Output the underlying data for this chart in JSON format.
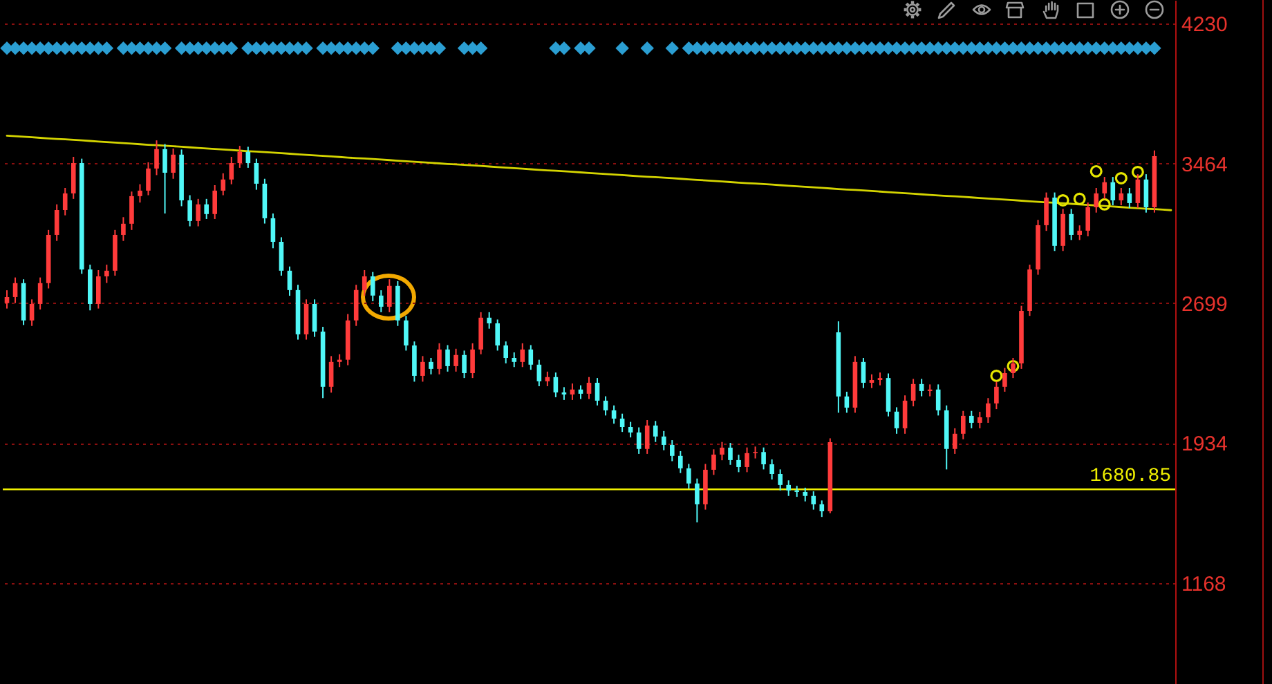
{
  "chart_data": {
    "type": "candlestick",
    "categories": [
      null,
      null,
      null,
      null,
      null,
      null,
      null,
      null,
      null,
      null,
      null,
      null,
      null,
      null,
      null,
      null,
      null,
      null,
      null,
      null,
      null,
      null,
      null,
      null,
      null,
      null,
      null,
      null,
      null,
      null,
      null,
      null,
      null,
      null,
      null,
      null,
      null,
      null,
      null,
      null,
      null,
      null,
      null,
      null,
      null,
      null,
      null,
      null,
      null,
      null,
      null,
      null,
      null,
      null,
      null,
      null,
      null,
      null,
      null,
      null,
      null,
      null,
      null,
      null,
      null,
      null,
      null,
      null,
      null,
      null,
      null,
      null,
      null,
      null,
      null,
      null,
      null,
      null,
      null,
      null,
      null,
      null,
      null,
      null,
      null,
      null,
      null,
      null,
      null,
      null,
      null,
      null,
      null,
      null,
      null,
      null,
      null,
      null,
      null,
      null,
      null,
      null,
      null,
      null,
      null,
      null,
      null,
      null,
      null,
      null,
      null,
      null,
      null,
      null,
      null,
      null,
      null,
      null,
      null,
      null,
      null,
      null,
      null,
      null,
      null,
      null,
      null,
      null,
      null,
      null,
      null,
      null,
      null,
      null,
      null,
      null,
      null,
      null,
      null,
      null,
      null
    ],
    "ohlc": [
      [
        2700,
        2770,
        2670,
        2733
      ],
      [
        2733,
        2840,
        2700,
        2809
      ],
      [
        2809,
        2830,
        2580,
        2605
      ],
      [
        2605,
        2720,
        2575,
        2695
      ],
      [
        2695,
        2840,
        2665,
        2809
      ],
      [
        2809,
        3100,
        2780,
        3073
      ],
      [
        3073,
        3240,
        3040,
        3209
      ],
      [
        3209,
        3330,
        3180,
        3300
      ],
      [
        3300,
        3500,
        3270,
        3466
      ],
      [
        3466,
        3490,
        2860,
        2884
      ],
      [
        2884,
        2910,
        2660,
        2695
      ],
      [
        2695,
        2880,
        2670,
        2846
      ],
      [
        2846,
        2910,
        2810,
        2877
      ],
      [
        2877,
        3100,
        2850,
        3073
      ],
      [
        3073,
        3170,
        3040,
        3134
      ],
      [
        3134,
        3310,
        3100,
        3285
      ],
      [
        3285,
        3350,
        3250,
        3315
      ],
      [
        3315,
        3470,
        3290,
        3436
      ],
      [
        3436,
        3590,
        3400,
        3542
      ],
      [
        3542,
        3570,
        3190,
        3413
      ],
      [
        3413,
        3545,
        3380,
        3512
      ],
      [
        3512,
        3540,
        3230,
        3262
      ],
      [
        3262,
        3290,
        3120,
        3149
      ],
      [
        3149,
        3270,
        3120,
        3240
      ],
      [
        3240,
        3270,
        3160,
        3187
      ],
      [
        3187,
        3345,
        3160,
        3315
      ],
      [
        3315,
        3410,
        3290,
        3376
      ],
      [
        3376,
        3500,
        3350,
        3466
      ],
      [
        3466,
        3560,
        3440,
        3527
      ],
      [
        3527,
        3555,
        3440,
        3466
      ],
      [
        3466,
        3490,
        3320,
        3353
      ],
      [
        3353,
        3380,
        3135,
        3164
      ],
      [
        3164,
        3190,
        3000,
        3035
      ],
      [
        3035,
        3060,
        2850,
        2877
      ],
      [
        2877,
        2900,
        2740,
        2771
      ],
      [
        2771,
        2800,
        2500,
        2529
      ],
      [
        2529,
        2720,
        2500,
        2695
      ],
      [
        2695,
        2720,
        2515,
        2544
      ],
      [
        2544,
        2570,
        2180,
        2242
      ],
      [
        2242,
        2410,
        2210,
        2378
      ],
      [
        2378,
        2420,
        2350,
        2390
      ],
      [
        2390,
        2640,
        2360,
        2605
      ],
      [
        2605,
        2800,
        2575,
        2771
      ],
      [
        2771,
        2880,
        2740,
        2846
      ],
      [
        2846,
        2870,
        2710,
        2741
      ],
      [
        2741,
        2770,
        2650,
        2680
      ],
      [
        2680,
        2830,
        2650,
        2794
      ],
      [
        2794,
        2820,
        2575,
        2605
      ],
      [
        2605,
        2630,
        2440,
        2468
      ],
      [
        2468,
        2490,
        2270,
        2302
      ],
      [
        2302,
        2410,
        2270,
        2378
      ],
      [
        2378,
        2400,
        2310,
        2340
      ],
      [
        2340,
        2480,
        2310,
        2446
      ],
      [
        2446,
        2470,
        2325,
        2355
      ],
      [
        2355,
        2450,
        2325,
        2416
      ],
      [
        2416,
        2440,
        2290,
        2317
      ],
      [
        2317,
        2480,
        2290,
        2446
      ],
      [
        2446,
        2650,
        2420,
        2620
      ],
      [
        2620,
        2650,
        2560,
        2589
      ],
      [
        2589,
        2610,
        2440,
        2468
      ],
      [
        2468,
        2490,
        2370,
        2400
      ],
      [
        2400,
        2430,
        2350,
        2378
      ],
      [
        2378,
        2480,
        2350,
        2446
      ],
      [
        2446,
        2470,
        2335,
        2363
      ],
      [
        2363,
        2390,
        2245,
        2272
      ],
      [
        2272,
        2325,
        2245,
        2295
      ],
      [
        2295,
        2320,
        2185,
        2211
      ],
      [
        2211,
        2240,
        2170,
        2200
      ],
      [
        2200,
        2260,
        2170,
        2227
      ],
      [
        2227,
        2250,
        2175,
        2204
      ],
      [
        2204,
        2295,
        2175,
        2264
      ],
      [
        2264,
        2290,
        2140,
        2166
      ],
      [
        2166,
        2190,
        2085,
        2113
      ],
      [
        2113,
        2140,
        2040,
        2068
      ],
      [
        2068,
        2095,
        1995,
        2022
      ],
      [
        2022,
        2050,
        1965,
        1992
      ],
      [
        1992,
        2020,
        1875,
        1902
      ],
      [
        1902,
        2060,
        1875,
        2030
      ],
      [
        2030,
        2055,
        1940,
        1970
      ],
      [
        1970,
        2000,
        1895,
        1924
      ],
      [
        1924,
        1950,
        1835,
        1864
      ],
      [
        1864,
        1890,
        1770,
        1796
      ],
      [
        1796,
        1820,
        1685,
        1713
      ],
      [
        1713,
        1740,
        1500,
        1599
      ],
      [
        1599,
        1820,
        1570,
        1788
      ],
      [
        1788,
        1900,
        1760,
        1871
      ],
      [
        1871,
        1940,
        1840,
        1909
      ],
      [
        1909,
        1935,
        1815,
        1841
      ],
      [
        1841,
        1870,
        1775,
        1803
      ],
      [
        1803,
        1910,
        1775,
        1879
      ],
      [
        1879,
        1915,
        1850,
        1885
      ],
      [
        1885,
        1910,
        1790,
        1818
      ],
      [
        1818,
        1845,
        1735,
        1765
      ],
      [
        1765,
        1790,
        1675,
        1705
      ],
      [
        1705,
        1730,
        1645,
        1675
      ],
      [
        1675,
        1700,
        1640,
        1667
      ],
      [
        1667,
        1690,
        1615,
        1645
      ],
      [
        1645,
        1670,
        1570,
        1599
      ],
      [
        1599,
        1620,
        1530,
        1561
      ],
      [
        1561,
        1960,
        1550,
        1939
      ],
      [
        2540,
        2600,
        2100,
        2189
      ],
      [
        2189,
        2215,
        2100,
        2128
      ],
      [
        2128,
        2410,
        2100,
        2378
      ],
      [
        2378,
        2400,
        2235,
        2264
      ],
      [
        2264,
        2310,
        2235,
        2279
      ],
      [
        2279,
        2320,
        2250,
        2290
      ],
      [
        2290,
        2315,
        2080,
        2106
      ],
      [
        2106,
        2130,
        1985,
        2015
      ],
      [
        2015,
        2195,
        1985,
        2166
      ],
      [
        2166,
        2285,
        2135,
        2257
      ],
      [
        2257,
        2285,
        2190,
        2219
      ],
      [
        2219,
        2255,
        2190,
        2227
      ],
      [
        2227,
        2255,
        2085,
        2113
      ],
      [
        2113,
        2140,
        1790,
        1902
      ],
      [
        1902,
        2015,
        1875,
        1985
      ],
      [
        1985,
        2110,
        1955,
        2083
      ],
      [
        2083,
        2110,
        2015,
        2045
      ],
      [
        2045,
        2105,
        2015,
        2075
      ],
      [
        2075,
        2180,
        2045,
        2151
      ],
      [
        2151,
        2270,
        2120,
        2242
      ],
      [
        2242,
        2345,
        2215,
        2317
      ],
      [
        2317,
        2400,
        2290,
        2370
      ],
      [
        2370,
        2685,
        2340,
        2657
      ],
      [
        2657,
        2910,
        2630,
        2884
      ],
      [
        2884,
        3155,
        2855,
        3126
      ],
      [
        3126,
        3305,
        3095,
        3277
      ],
      [
        3277,
        3305,
        2985,
        3013
      ],
      [
        3013,
        3215,
        2985,
        3187
      ],
      [
        3187,
        3215,
        3045,
        3073
      ],
      [
        3073,
        3125,
        3045,
        3096
      ],
      [
        3096,
        3250,
        3065,
        3224
      ],
      [
        3224,
        3330,
        3195,
        3300
      ],
      [
        3300,
        3390,
        3270,
        3361
      ],
      [
        3361,
        3390,
        3235,
        3262
      ],
      [
        3262,
        3330,
        3235,
        3300
      ],
      [
        3300,
        3330,
        3220,
        3247
      ],
      [
        3247,
        3405,
        3220,
        3376
      ],
      [
        3376,
        3405,
        3195,
        3224
      ],
      [
        3224,
        3535,
        3195,
        3504
      ],
      null,
      null
    ],
    "colors": [
      "#ff3b3b",
      "#ff3b3b",
      "#50f7f7",
      "#ff3b3b",
      "#ff3b3b",
      "#ff3b3b",
      "#ff3b3b",
      "#ff3b3b",
      "#ff3b3b",
      "#50f7f7",
      "#50f7f7",
      "#ff3b3b",
      "#ff3b3b",
      "#ff3b3b",
      "#ff3b3b",
      "#ff3b3b",
      "#ff3b3b",
      "#ff3b3b",
      "#ff3b3b",
      "#50f7f7",
      "#ff3b3b",
      "#50f7f7",
      "#50f7f7",
      "#ff3b3b",
      "#50f7f7",
      "#ff3b3b",
      "#ff3b3b",
      "#ff3b3b",
      "#ff3b3b",
      "#50f7f7",
      "#50f7f7",
      "#50f7f7",
      "#50f7f7",
      "#50f7f7",
      "#50f7f7",
      "#50f7f7",
      "#ff3b3b",
      "#50f7f7",
      "#50f7f7",
      "#ff3b3b",
      "#ff3b3b",
      "#ff3b3b",
      "#ff3b3b",
      "#ff3b3b",
      "#50f7f7",
      "#50f7f7",
      "#ff3b3b",
      "#50f7f7",
      "#50f7f7",
      "#50f7f7",
      "#ff3b3b",
      "#50f7f7",
      "#ff3b3b",
      "#50f7f7",
      "#ff3b3b",
      "#50f7f7",
      "#ff3b3b",
      "#ff3b3b",
      "#50f7f7",
      "#50f7f7",
      "#50f7f7",
      "#50f7f7",
      "#ff3b3b",
      "#50f7f7",
      "#50f7f7",
      "#ff3b3b",
      "#50f7f7",
      "#50f7f7",
      "#ff3b3b",
      "#50f7f7",
      "#ff3b3b",
      "#50f7f7",
      "#50f7f7",
      "#50f7f7",
      "#50f7f7",
      "#50f7f7",
      "#50f7f7",
      "#ff3b3b",
      "#50f7f7",
      "#50f7f7",
      "#50f7f7",
      "#50f7f7",
      "#50f7f7",
      "#50f7f7",
      "#ff3b3b",
      "#ff3b3b",
      "#ff3b3b",
      "#50f7f7",
      "#50f7f7",
      "#ff3b3b",
      "#ff3b3b",
      "#50f7f7",
      "#50f7f7",
      "#50f7f7",
      "#50f7f7",
      "#50f7f7",
      "#50f7f7",
      "#50f7f7",
      "#50f7f7",
      "#ff3b3b",
      "#50f7f7",
      "#50f7f7",
      "#ff3b3b",
      "#50f7f7",
      "#ff3b3b",
      "#ff3b3b",
      "#50f7f7",
      "#50f7f7",
      "#ff3b3b",
      "#ff3b3b",
      "#50f7f7",
      "#ff3b3b",
      "#50f7f7",
      "#50f7f7",
      "#ff3b3b",
      "#ff3b3b",
      "#50f7f7",
      "#ff3b3b",
      "#ff3b3b",
      "#ff3b3b",
      "#ff3b3b",
      "#ff3b3b",
      "#ff3b3b",
      "#ff3b3b",
      "#ff3b3b",
      "#ff3b3b",
      "#50f7f7",
      "#ff3b3b",
      "#50f7f7",
      "#ff3b3b",
      "#ff3b3b",
      "#ff3b3b",
      "#ff3b3b",
      "#50f7f7",
      "#ff3b3b",
      "#50f7f7",
      "#ff3b3b",
      "#50f7f7",
      "#ff3b3b",
      null,
      null
    ],
    "series": [
      {
        "type": "line",
        "color": "#d4d400",
        "values": [
          3616,
          3613,
          3610,
          3607,
          3604,
          3601,
          3598,
          3596,
          3593,
          3590,
          3587,
          3584,
          3581,
          3578,
          3575,
          3572,
          3569,
          3566,
          3564,
          3561,
          3558,
          3555,
          3552,
          3549,
          3546,
          3543,
          3540,
          3537,
          3534,
          3531,
          3529,
          3526,
          3523,
          3520,
          3517,
          3514,
          3511,
          3508,
          3505,
          3502,
          3499,
          3496,
          3493,
          3491,
          3488,
          3485,
          3482,
          3479,
          3476,
          3473,
          3470,
          3467,
          3464,
          3461,
          3459,
          3456,
          3453,
          3450,
          3447,
          3444,
          3441,
          3438,
          3435,
          3432,
          3429,
          3426,
          3424,
          3421,
          3418,
          3415,
          3412,
          3409,
          3406,
          3403,
          3400,
          3397,
          3394,
          3391,
          3389,
          3386,
          3383,
          3380,
          3377,
          3374,
          3371,
          3368,
          3365,
          3362,
          3359,
          3356,
          3354,
          3351,
          3348,
          3345,
          3342,
          3339,
          3336,
          3333,
          3330,
          3327,
          3324,
          3321,
          3319,
          3316,
          3313,
          3310,
          3307,
          3304,
          3301,
          3298,
          3295,
          3292,
          3289,
          3286,
          3284,
          3281,
          3278,
          3275,
          3272,
          3269,
          3266,
          3263,
          3260,
          3257,
          3254,
          3251,
          3249,
          3246,
          3243,
          3240,
          3237,
          3234,
          3231,
          3228,
          3225,
          3222,
          3219,
          3216,
          3214,
          3211,
          3208
        ]
      },
      {
        "type": "scatter",
        "marker": "diamond",
        "color": "#2b9ed2",
        "values": [
          4094,
          4094,
          4094,
          4094,
          4094,
          4094,
          4094,
          4094,
          4094,
          4094,
          4094,
          4094,
          4094,
          null,
          4094,
          4094,
          4094,
          4094,
          4094,
          4094,
          null,
          4094,
          4094,
          4094,
          4094,
          4094,
          4094,
          4094,
          null,
          4094,
          4094,
          4094,
          4094,
          4094,
          4094,
          4094,
          4094,
          null,
          4094,
          4094,
          4094,
          4094,
          4094,
          4094,
          4094,
          null,
          null,
          4094,
          4094,
          4094,
          4094,
          4094,
          4094,
          null,
          null,
          4094,
          4094,
          4094,
          null,
          null,
          null,
          null,
          null,
          null,
          null,
          null,
          4094,
          4094,
          null,
          4094,
          4094,
          null,
          null,
          null,
          4094,
          null,
          null,
          4094,
          null,
          null,
          4094,
          null,
          4094,
          4094,
          4094,
          4094,
          4094,
          4094,
          4094,
          4094,
          4094,
          4094,
          4094,
          4094,
          4094,
          4094,
          4094,
          4094,
          4094,
          4094,
          4094,
          4094,
          4094,
          4094,
          4094,
          4094,
          4094,
          4094,
          4094,
          4094,
          4094,
          4094,
          4094,
          4094,
          4094,
          4094,
          4094,
          4094,
          4094,
          4094,
          4094,
          4094,
          4094,
          4094,
          4094,
          4094,
          4094,
          4094,
          4094,
          4094,
          4094,
          4094,
          4094,
          4094,
          4094,
          4094,
          4094,
          4094,
          4094,
          null,
          null
        ]
      },
      {
        "type": "scatter",
        "marker": "circle",
        "color": "#e6e600",
        "values": [
          null,
          null,
          null,
          null,
          null,
          null,
          null,
          null,
          null,
          null,
          null,
          null,
          null,
          null,
          null,
          null,
          null,
          null,
          null,
          null,
          null,
          null,
          null,
          null,
          null,
          null,
          null,
          null,
          null,
          null,
          null,
          null,
          null,
          null,
          null,
          null,
          null,
          null,
          null,
          null,
          null,
          null,
          null,
          null,
          null,
          null,
          null,
          null,
          null,
          null,
          null,
          null,
          null,
          null,
          null,
          null,
          null,
          null,
          null,
          null,
          null,
          null,
          null,
          null,
          null,
          null,
          null,
          null,
          null,
          null,
          null,
          null,
          null,
          null,
          null,
          null,
          null,
          null,
          null,
          null,
          null,
          null,
          null,
          null,
          null,
          null,
          null,
          null,
          null,
          null,
          null,
          null,
          null,
          null,
          null,
          null,
          null,
          null,
          null,
          null,
          null,
          null,
          null,
          null,
          null,
          null,
          null,
          null,
          null,
          null,
          null,
          null,
          null,
          null,
          null,
          null,
          null,
          null,
          null,
          2302,
          null,
          2355,
          null,
          null,
          null,
          null,
          null,
          3262,
          null,
          3270,
          null,
          3421,
          3240,
          null,
          3383,
          null,
          3417,
          null,
          null,
          null,
          null
        ]
      }
    ],
    "ref_lines": [
      {
        "axis": "y",
        "value": 1680.85,
        "label": "1680.85",
        "color": "#f0f000"
      }
    ],
    "ylim": [
      616,
      4358
    ],
    "yticks": [
      1168,
      1934,
      2699,
      3464,
      4230
    ],
    "grid": "y",
    "tick_labels": "y"
  }
}
